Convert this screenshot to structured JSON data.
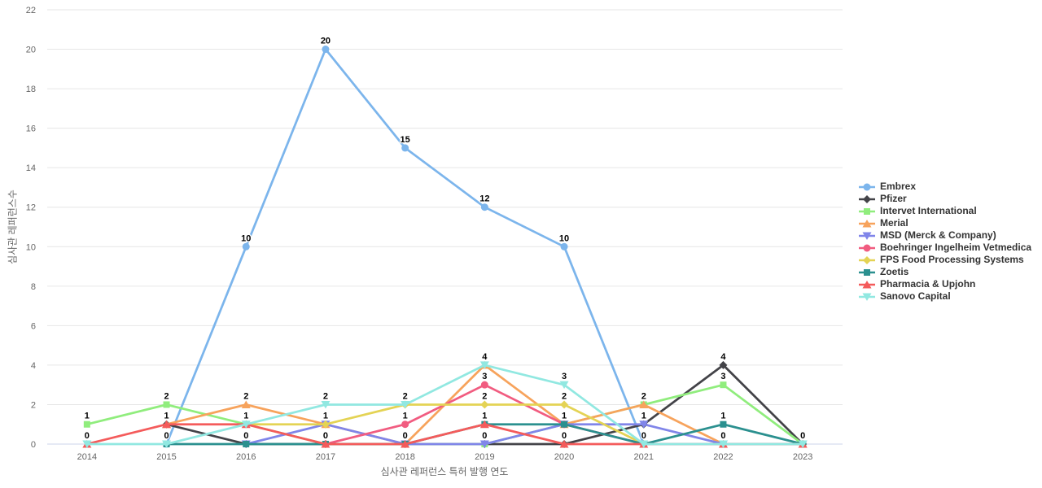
{
  "chart_data": {
    "type": "line",
    "title": "",
    "xlabel": "심사관 레퍼런스 특허 발행 연도",
    "ylabel": "심사관 레퍼런스수",
    "categories": [
      "2014",
      "2015",
      "2016",
      "2017",
      "2018",
      "2019",
      "2020",
      "2021",
      "2022",
      "2023"
    ],
    "ylim": [
      0,
      22
    ],
    "yticks": [
      0,
      2,
      4,
      6,
      8,
      10,
      12,
      14,
      16,
      18,
      20,
      22
    ],
    "grid": true,
    "legend_position": "right",
    "colors": {
      "gridline": "#e6e6e6",
      "axis_line": "#ccd6eb",
      "tick_label": "#666666",
      "axis_title": "#666666",
      "data_label": "#000000",
      "legend_text": "#333333"
    },
    "series": [
      {
        "name": "Embrex",
        "color": "#7cb5ec",
        "marker": "circle",
        "values": [
          null,
          0,
          10,
          20,
          15,
          12,
          10,
          0,
          0,
          0
        ]
      },
      {
        "name": "Pfizer",
        "color": "#434348",
        "marker": "diamond",
        "values": [
          null,
          1,
          0,
          0,
          0,
          0,
          0,
          1,
          4,
          0
        ]
      },
      {
        "name": "Intervet International",
        "color": "#90ed7d",
        "marker": "square",
        "values": [
          1,
          2,
          1,
          0,
          0,
          0,
          1,
          2,
          3,
          0
        ]
      },
      {
        "name": "Merial",
        "color": "#f7a35c",
        "marker": "triangle",
        "values": [
          null,
          1,
          2,
          1,
          0,
          4,
          1,
          2,
          0,
          0
        ]
      },
      {
        "name": "MSD (Merck & Company)",
        "color": "#8085e9",
        "marker": "triangle-down",
        "values": [
          null,
          null,
          0,
          1,
          0,
          0,
          1,
          1,
          0,
          0
        ]
      },
      {
        "name": "Boehringer Ingelheim Vetmedica",
        "color": "#f15c80",
        "marker": "circle",
        "values": [
          null,
          null,
          null,
          0,
          1,
          3,
          1,
          0,
          null,
          null
        ]
      },
      {
        "name": "FPS Food Processing Systems",
        "color": "#e4d354",
        "marker": "diamond",
        "values": [
          null,
          null,
          1,
          1,
          2,
          2,
          2,
          0,
          null,
          null
        ]
      },
      {
        "name": "Zoetis",
        "color": "#2b908f",
        "marker": "square",
        "values": [
          null,
          0,
          0,
          0,
          0,
          1,
          1,
          0,
          1,
          0
        ]
      },
      {
        "name": "Pharmacia & Upjohn",
        "color": "#f45b5b",
        "marker": "triangle",
        "values": [
          0,
          1,
          1,
          0,
          0,
          1,
          0,
          0,
          0,
          0
        ]
      },
      {
        "name": "Sanovo Capital",
        "color": "#91e8e1",
        "marker": "triangle-down",
        "values": [
          0,
          0,
          1,
          2,
          2,
          4,
          3,
          0,
          0,
          0
        ]
      }
    ]
  }
}
